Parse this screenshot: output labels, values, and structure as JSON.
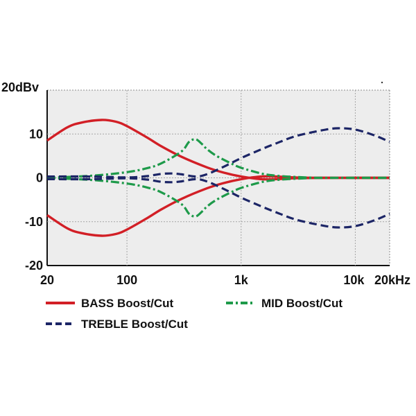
{
  "chart_data": {
    "type": "line",
    "xscale": "log",
    "xlim": [
      20,
      20000
    ],
    "ylim": [
      -20,
      20
    ],
    "grid": true,
    "legend_position": "bottom",
    "x_ticks": [
      {
        "value": 20,
        "label": "20"
      },
      {
        "value": 100,
        "label": "100"
      },
      {
        "value": 1000,
        "label": "1k"
      },
      {
        "value": 10000,
        "label": "10k"
      },
      {
        "value": 20000,
        "label": "20kHz"
      }
    ],
    "y_ticks": [
      {
        "value": 20,
        "label": "20dBv"
      },
      {
        "value": 10,
        "label": "10"
      },
      {
        "value": 0,
        "label": "0"
      },
      {
        "value": -10,
        "label": "-10"
      },
      {
        "value": -20,
        "label": "-20"
      }
    ],
    "series": [
      {
        "name": "BASS Boost/Cut",
        "color": "#d21f26",
        "style": "solid",
        "curves": [
          {
            "x": [
              20,
              30,
              40,
              60,
              80,
              100,
              150,
              200,
              300,
              500,
              700,
              1000,
              1500,
              2000,
              3000,
              5000,
              10000,
              20000
            ],
            "y": [
              8.5,
              11.5,
              12.6,
              13.2,
              12.8,
              11.8,
              9.2,
              7.2,
              4.8,
              2.4,
              1.2,
              0.3,
              -0.3,
              -0.3,
              -0.1,
              0,
              0,
              0
            ]
          },
          {
            "x": [
              20,
              30,
              40,
              60,
              80,
              100,
              150,
              200,
              300,
              500,
              700,
              1000,
              1500,
              2000,
              3000,
              5000,
              10000,
              20000
            ],
            "y": [
              -8.5,
              -11.5,
              -12.6,
              -13.2,
              -12.8,
              -11.8,
              -9.2,
              -7.2,
              -4.8,
              -2.4,
              -1.2,
              -0.3,
              0.3,
              0.3,
              0.1,
              0,
              0,
              0
            ]
          }
        ]
      },
      {
        "name": "MID Boost/Cut",
        "color": "#1e9a4a",
        "style": "dashdot",
        "curves": [
          {
            "x": [
              20,
              50,
              100,
              150,
              200,
              300,
              350,
              400,
              450,
              500,
              600,
              800,
              1000,
              1500,
              2000,
              3000,
              5000,
              10000,
              20000
            ],
            "y": [
              0,
              0.5,
              1.3,
              2.2,
              3.3,
              6.0,
              8.2,
              8.8,
              7.8,
              6.6,
              5.1,
              3.4,
              2.3,
              1.0,
              0.5,
              0.2,
              0,
              0,
              0
            ]
          },
          {
            "x": [
              20,
              50,
              100,
              150,
              200,
              300,
              350,
              400,
              450,
              500,
              600,
              800,
              1000,
              1500,
              2000,
              3000,
              5000,
              10000,
              20000
            ],
            "y": [
              0,
              -0.5,
              -1.3,
              -2.2,
              -3.3,
              -6.0,
              -8.2,
              -8.8,
              -7.8,
              -6.6,
              -5.1,
              -3.4,
              -2.3,
              -1.0,
              -0.5,
              -0.2,
              0,
              0,
              0
            ]
          }
        ]
      },
      {
        "name": "TREBLE Boost/Cut",
        "color": "#1c2566",
        "style": "dashed",
        "curves": [
          {
            "x": [
              20,
              50,
              100,
              150,
              200,
              250,
              300,
              400,
              500,
              700,
              1000,
              1500,
              2000,
              3000,
              5000,
              7000,
              10000,
              15000,
              20000
            ],
            "y": [
              0.3,
              0.3,
              0.1,
              0.4,
              0.9,
              1.0,
              0.8,
              0.3,
              0.8,
              2.5,
              4.5,
              6.5,
              7.8,
              9.5,
              10.8,
              11.3,
              11.0,
              9.6,
              8.2
            ]
          },
          {
            "x": [
              20,
              50,
              100,
              150,
              200,
              250,
              300,
              400,
              500,
              700,
              1000,
              1500,
              2000,
              3000,
              5000,
              7000,
              10000,
              15000,
              20000
            ],
            "y": [
              -0.3,
              -0.3,
              -0.1,
              -0.4,
              -0.9,
              -1.0,
              -0.8,
              -0.3,
              -0.8,
              -2.5,
              -4.5,
              -6.5,
              -7.8,
              -9.5,
              -10.8,
              -11.3,
              -11.0,
              -9.6,
              -8.2
            ]
          }
        ]
      }
    ]
  }
}
